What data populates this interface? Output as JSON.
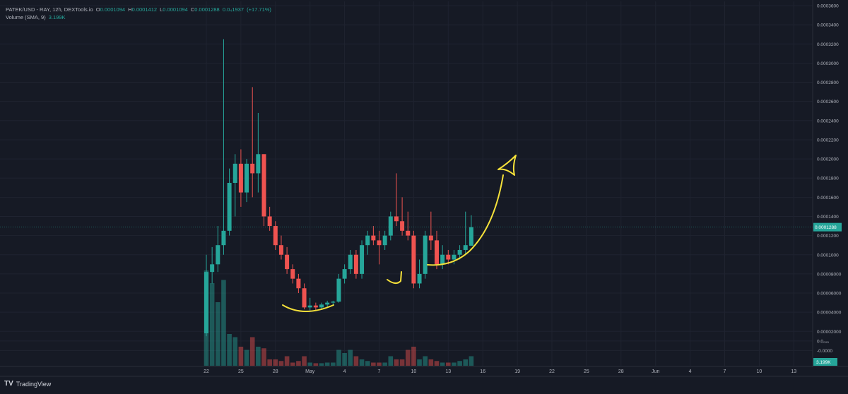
{
  "header": {
    "symbol": "PATEK/USD - RAY, 12h, DEXTools.io",
    "ohlc": {
      "o_label": "O",
      "o": "0.0001094",
      "h_label": "H",
      "h": "0.0001412",
      "l_label": "L",
      "l": "0.0001094",
      "c_label": "C",
      "c": "0.0001288",
      "change": "0.0₄1937",
      "change_pct": "(+17.71%)"
    },
    "volume_label": "Volume (SMA, 9)",
    "volume_value": "3.199K"
  },
  "branding": {
    "logo_text": "TradingView",
    "logo_mark": "TV"
  },
  "colors": {
    "up": "#26a69a",
    "down": "#ef5350",
    "annotation": "#f5e13a",
    "background": "#161a25",
    "price_tag": "#26a69a"
  },
  "chart_data": {
    "type": "candlestick",
    "interval": "12h",
    "y_axis": {
      "ylim": [
        -1e-05,
        0.00036
      ],
      "ticks": [
        "0.0003600",
        "0.0003400",
        "0.0003200",
        "0.0003000",
        "0.0002800",
        "0.0002600",
        "0.0002400",
        "0.0002200",
        "0.0002000",
        "0.0001800",
        "0.0001600",
        "0.0001400",
        "0.0001200",
        "0.0001000",
        "0.00008000",
        "0.00006000",
        "0.00004000",
        "0.00002000",
        "0.0₀₀₅",
        "-0.0000"
      ],
      "tick_values": [
        0.00036,
        0.00034,
        0.00032,
        0.0003,
        0.00028,
        0.00026,
        0.00024,
        0.00022,
        0.0002,
        0.00018,
        0.00016,
        0.00014,
        0.00012,
        0.0001,
        8e-05,
        6e-05,
        4e-05,
        2e-05,
        1e-05,
        0
      ]
    },
    "x_axis": {
      "ticks": [
        "22",
        "25",
        "28",
        "May",
        "4",
        "7",
        "10",
        "13",
        "16",
        "19",
        "22",
        "25",
        "28",
        "Jun",
        "4",
        "7",
        "10",
        "13"
      ],
      "tick_index": [
        0,
        6,
        12,
        18,
        24,
        30,
        36,
        42,
        48,
        54,
        60,
        66,
        72,
        78,
        84,
        90,
        96,
        102
      ]
    },
    "last_price": {
      "value": 0.0001288,
      "label": "0.0001288"
    },
    "volume_last_label": "3.199K",
    "candles": [
      {
        "o": 1.8e-05,
        "h": 0.0001,
        "l": 1.5e-05,
        "c": 8.2e-05,
        "v": 3.0
      },
      {
        "o": 8.2e-05,
        "h": 0.000108,
        "l": 7e-05,
        "c": 9e-05,
        "v": 2.6
      },
      {
        "o": 9e-05,
        "h": 0.00013,
        "l": 8.2e-05,
        "c": 0.00011,
        "v": 2.0
      },
      {
        "o": 0.00011,
        "h": 0.000325,
        "l": 0.0001,
        "c": 0.000125,
        "v": 2.7
      },
      {
        "o": 0.000125,
        "h": 0.00019,
        "l": 0.00012,
        "c": 0.000175,
        "v": 1.0
      },
      {
        "o": 0.000175,
        "h": 0.000205,
        "l": 0.00014,
        "c": 0.000195,
        "v": 0.9
      },
      {
        "o": 0.000195,
        "h": 0.00021,
        "l": 0.00015,
        "c": 0.000165,
        "v": 0.6
      },
      {
        "o": 0.000165,
        "h": 0.0002,
        "l": 0.000155,
        "c": 0.000195,
        "v": 0.5
      },
      {
        "o": 0.000195,
        "h": 0.000275,
        "l": 0.00016,
        "c": 0.000185,
        "v": 0.9
      },
      {
        "o": 0.000185,
        "h": 0.000248,
        "l": 0.000165,
        "c": 0.000205,
        "v": 0.6
      },
      {
        "o": 0.000205,
        "h": 0.000205,
        "l": 0.00013,
        "c": 0.00014,
        "v": 0.55
      },
      {
        "o": 0.00014,
        "h": 0.00015,
        "l": 0.000125,
        "c": 0.00013,
        "v": 0.2
      },
      {
        "o": 0.00013,
        "h": 0.000135,
        "l": 0.000105,
        "c": 0.00011,
        "v": 0.2
      },
      {
        "o": 0.00011,
        "h": 0.00012,
        "l": 9.5e-05,
        "c": 0.0001,
        "v": 0.15
      },
      {
        "o": 0.0001,
        "h": 0.000108,
        "l": 8e-05,
        "c": 8.5e-05,
        "v": 0.3
      },
      {
        "o": 8.5e-05,
        "h": 9e-05,
        "l": 7e-05,
        "c": 7.5e-05,
        "v": 0.1
      },
      {
        "o": 7.5e-05,
        "h": 8e-05,
        "l": 6e-05,
        "c": 6.5e-05,
        "v": 0.15
      },
      {
        "o": 6.5e-05,
        "h": 7e-05,
        "l": 4.3e-05,
        "c": 4.5e-05,
        "v": 0.3
      },
      {
        "o": 4.5e-05,
        "h": 5.5e-05,
        "l": 4.2e-05,
        "c": 4.7e-05,
        "v": 0.1
      },
      {
        "o": 4.7e-05,
        "h": 5e-05,
        "l": 4.2e-05,
        "c": 4.5e-05,
        "v": 0.08
      },
      {
        "o": 4.5e-05,
        "h": 5e-05,
        "l": 4.3e-05,
        "c": 4.8e-05,
        "v": 0.08
      },
      {
        "o": 4.8e-05,
        "h": 5.2e-05,
        "l": 4.5e-05,
        "c": 5e-05,
        "v": 0.1
      },
      {
        "o": 5e-05,
        "h": 5.2e-05,
        "l": 4.8e-05,
        "c": 5.1e-05,
        "v": 0.1
      },
      {
        "o": 5.1e-05,
        "h": 8e-05,
        "l": 5e-05,
        "c": 7.5e-05,
        "v": 0.5
      },
      {
        "o": 7.5e-05,
        "h": 9e-05,
        "l": 7e-05,
        "c": 8.5e-05,
        "v": 0.4
      },
      {
        "o": 8.5e-05,
        "h": 0.000105,
        "l": 8e-05,
        "c": 0.0001,
        "v": 0.5
      },
      {
        "o": 0.0001,
        "h": 0.000105,
        "l": 7.5e-05,
        "c": 8e-05,
        "v": 0.3
      },
      {
        "o": 8e-05,
        "h": 0.000115,
        "l": 7.5e-05,
        "c": 0.00011,
        "v": 0.2
      },
      {
        "o": 0.00011,
        "h": 0.000125,
        "l": 0.0001,
        "c": 0.00012,
        "v": 0.15
      },
      {
        "o": 0.00012,
        "h": 0.00013,
        "l": 0.00011,
        "c": 0.000115,
        "v": 0.1
      },
      {
        "o": 0.000115,
        "h": 0.000125,
        "l": 9e-05,
        "c": 0.00011,
        "v": 0.1
      },
      {
        "o": 0.00011,
        "h": 0.000125,
        "l": 0.000105,
        "c": 0.00012,
        "v": 0.1
      },
      {
        "o": 0.00012,
        "h": 0.000145,
        "l": 0.000115,
        "c": 0.00014,
        "v": 0.3
      },
      {
        "o": 0.00014,
        "h": 0.000185,
        "l": 0.00013,
        "c": 0.000135,
        "v": 0.2
      },
      {
        "o": 0.000135,
        "h": 0.00016,
        "l": 0.00012,
        "c": 0.000125,
        "v": 0.2
      },
      {
        "o": 0.000125,
        "h": 0.000145,
        "l": 0.000115,
        "c": 0.00012,
        "v": 0.5
      },
      {
        "o": 0.00012,
        "h": 0.000125,
        "l": 6.5e-05,
        "c": 7e-05,
        "v": 0.6
      },
      {
        "o": 7e-05,
        "h": 9.5e-05,
        "l": 6.5e-05,
        "c": 8e-05,
        "v": 0.2
      },
      {
        "o": 8e-05,
        "h": 0.000125,
        "l": 7.5e-05,
        "c": 0.00012,
        "v": 0.3
      },
      {
        "o": 0.00012,
        "h": 0.000145,
        "l": 0.000105,
        "c": 0.000115,
        "v": 0.2
      },
      {
        "o": 0.000115,
        "h": 0.000125,
        "l": 8.5e-05,
        "c": 9e-05,
        "v": 0.15
      },
      {
        "o": 9e-05,
        "h": 0.00011,
        "l": 8.5e-05,
        "c": 0.0001,
        "v": 0.1
      },
      {
        "o": 0.0001,
        "h": 0.000105,
        "l": 9e-05,
        "c": 9.5e-05,
        "v": 0.1
      },
      {
        "o": 9.5e-05,
        "h": 0.000105,
        "l": 9e-05,
        "c": 0.0001,
        "v": 0.1
      },
      {
        "o": 0.0001,
        "h": 0.00011,
        "l": 9.5e-05,
        "c": 0.000105,
        "v": 0.15
      },
      {
        "o": 0.000105,
        "h": 0.000145,
        "l": 0.0001,
        "c": 0.00011,
        "v": 0.2
      },
      {
        "o": 0.0001094,
        "h": 0.0001412,
        "l": 0.0001094,
        "c": 0.0001288,
        "v": 0.3
      }
    ]
  }
}
